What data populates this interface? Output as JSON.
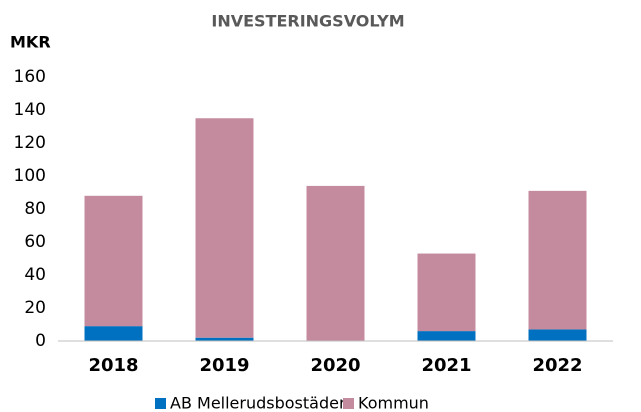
{
  "chart_data": {
    "type": "stacked_bar",
    "title": "INVESTERINGSVOLYM",
    "y_label": "MKR",
    "categories": [
      "2018",
      "2019",
      "2020",
      "2021",
      "2022"
    ],
    "series": [
      {
        "name": "AB Mellerudsbostäder",
        "color": "#0070c0",
        "values": [
          9,
          2,
          0,
          6,
          7
        ]
      },
      {
        "name": "Kommun",
        "color": "#c48b9f",
        "values": [
          79,
          133,
          94,
          47,
          84
        ]
      }
    ],
    "ylim": [
      0,
      160
    ],
    "yticks": [
      0,
      20,
      40,
      60,
      80,
      100,
      120,
      140,
      160
    ],
    "grid": false,
    "legend": "bottom"
  }
}
